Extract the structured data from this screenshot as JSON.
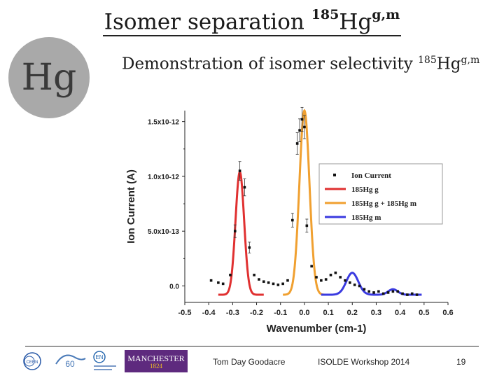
{
  "slide": {
    "title_main": "Isomer separation ",
    "title_sup": "185",
    "title_elem": "Hg",
    "title_sup2": "g,m",
    "badge_symbol": "Hg",
    "subtitle_main": "Demonstration of isomer selectivity ",
    "subtitle_sup": "185",
    "subtitle_elem": "Hg",
    "subtitle_sup2": "g,m"
  },
  "footer": {
    "author": "Tom Day Goodacre",
    "event": "ISOLDE Workshop 2014",
    "page_number": "19",
    "logos": [
      "cern-logo",
      "cern-60-logo",
      "en-department-logo",
      "manchester-logo"
    ],
    "manchester_text": "MANCHESTER",
    "manchester_year": "1824"
  },
  "chart_data": {
    "type": "line",
    "xlabel": "Wavenumber (cm-1)",
    "ylabel": "Ion Current (A)",
    "xlim": [
      -0.5,
      0.6
    ],
    "ylim": [
      -1.5e-13,
      1.6e-12
    ],
    "x_ticks": [
      "-0.5",
      "-0.4",
      "-0.3",
      "-0.2",
      "-0.1",
      "0.0",
      "0.1",
      "0.2",
      "0.3",
      "0.4",
      "0.5",
      "0.6"
    ],
    "y_ticks": [
      "0.0",
      "5.0x10-13",
      "1.0x10-12",
      "1.5x10-12"
    ],
    "legend_position": "right",
    "legend": [
      "Ion Current",
      "185Hg g",
      "185Hg g + 185Hg m",
      "185Hg m"
    ],
    "colors": {
      "ion_current": "#111111",
      "hg_g": "#e03030",
      "hg_gm": "#f0a030",
      "hg_m": "#3a3ae0"
    },
    "ion_current": {
      "x": [
        -0.39,
        -0.36,
        -0.34,
        -0.31,
        -0.29,
        -0.27,
        -0.25,
        -0.23,
        -0.21,
        -0.19,
        -0.17,
        -0.15,
        -0.13,
        -0.11,
        -0.09,
        -0.07,
        -0.05,
        -0.03,
        -0.02,
        -0.01,
        0.0,
        0.01,
        0.03,
        0.05,
        0.07,
        0.09,
        0.11,
        0.13,
        0.15,
        0.17,
        0.19,
        0.21,
        0.23,
        0.25,
        0.27,
        0.29,
        0.31,
        0.33,
        0.35,
        0.37,
        0.39,
        0.41,
        0.43,
        0.45,
        0.47
      ],
      "y": [
        5e-14,
        3e-14,
        2e-14,
        1e-13,
        5e-13,
        1.05e-12,
        9e-13,
        3.5e-13,
        1e-13,
        6e-14,
        4e-14,
        3e-14,
        2e-14,
        1e-14,
        2e-14,
        5e-14,
        6e-13,
        1.3e-12,
        1.42e-12,
        1.52e-12,
        1.45e-12,
        5.5e-13,
        1.8e-13,
        8e-14,
        5e-14,
        6e-14,
        1e-13,
        1.2e-13,
        8e-14,
        5e-14,
        3e-14,
        1e-14,
        0.0,
        -3e-14,
        -5e-14,
        -6e-14,
        -5e-14,
        -7e-14,
        -6e-14,
        -5e-14,
        -5e-14,
        -7e-14,
        -8e-14,
        -7e-14,
        -8e-14
      ]
    },
    "fit_hg_g": {
      "center": -0.27,
      "amp": 1.12e-12,
      "sigma": 0.018,
      "base": -8e-14,
      "range": [
        -0.36,
        -0.17
      ]
    },
    "fit_hg_gm": {
      "center": 0.0,
      "amp": 1.68e-12,
      "sigma": 0.021,
      "base": -8e-14,
      "range": [
        -0.09,
        0.09
      ]
    },
    "fit_hg_m": {
      "base": -8e-14,
      "range": [
        0.07,
        0.49
      ],
      "peaks": [
        {
          "center": 0.2,
          "amp": 2e-13,
          "sigma": 0.025
        },
        {
          "center": 0.37,
          "amp": 5e-14,
          "sigma": 0.02
        }
      ]
    }
  }
}
